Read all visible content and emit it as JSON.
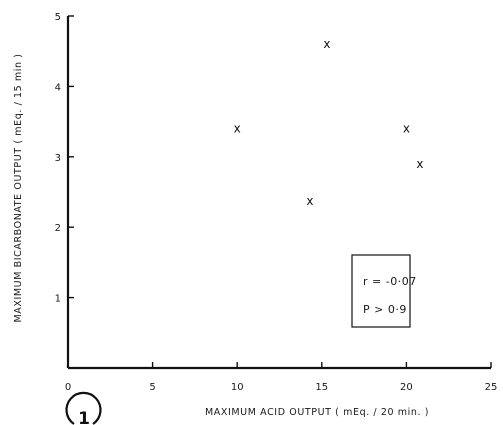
{
  "figure_number": "1",
  "chart_data": {
    "type": "scatter",
    "xlabel": "MAXIMUM ACID OUTPUT  ( mEq. / 20 min. )",
    "ylabel": "MAXIMUM BICARBONATE OUTPUT ( mEq. / 15 min )",
    "xlim": [
      0,
      25
    ],
    "ylim": [
      0,
      5
    ],
    "x_ticks": [
      0,
      5,
      10,
      15,
      20,
      25
    ],
    "y_ticks": [
      1,
      2,
      3,
      4,
      5
    ],
    "points": [
      {
        "x": 10,
        "y": 3.4
      },
      {
        "x": 14.3,
        "y": 2.37
      },
      {
        "x": 15.3,
        "y": 4.6
      },
      {
        "x": 20,
        "y": 3.4
      },
      {
        "x": 20.8,
        "y": 2.9
      }
    ],
    "marker": "x",
    "grid": false,
    "annotation": {
      "lines": [
        "r = -0·07",
        "P > 0·9"
      ],
      "placement": "lower-right"
    }
  }
}
